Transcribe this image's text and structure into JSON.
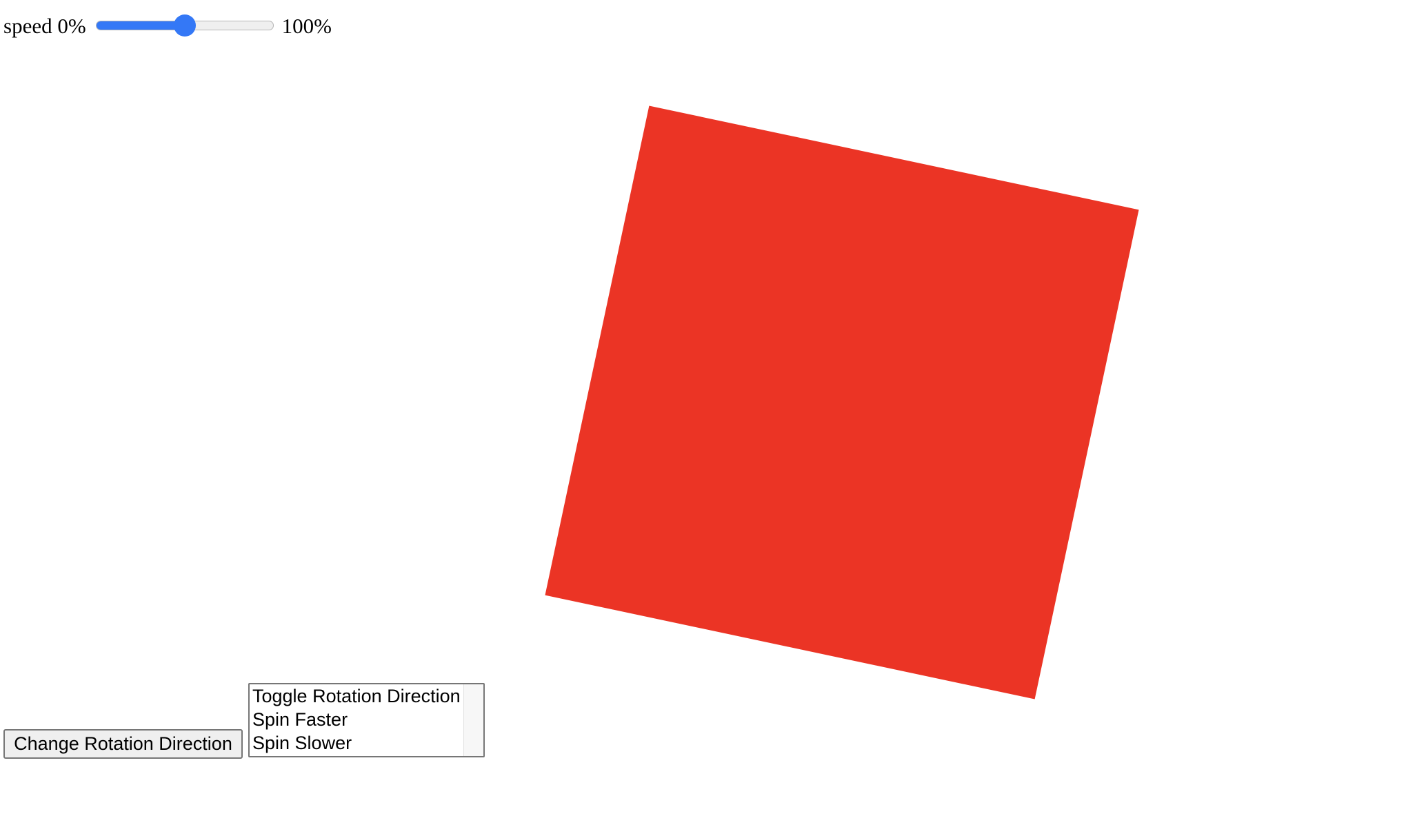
{
  "speed_control": {
    "label_prefix": "speed 0%",
    "label_suffix": "100%",
    "value_percent": 50,
    "accent_color": "#3478f6"
  },
  "square": {
    "color": "#eb3425",
    "rotation_deg": 12
  },
  "change_button": {
    "label": "Change Rotation Direction"
  },
  "command_list": {
    "options": [
      "Toggle Rotation Direction",
      "Spin Faster",
      "Spin Slower"
    ]
  }
}
